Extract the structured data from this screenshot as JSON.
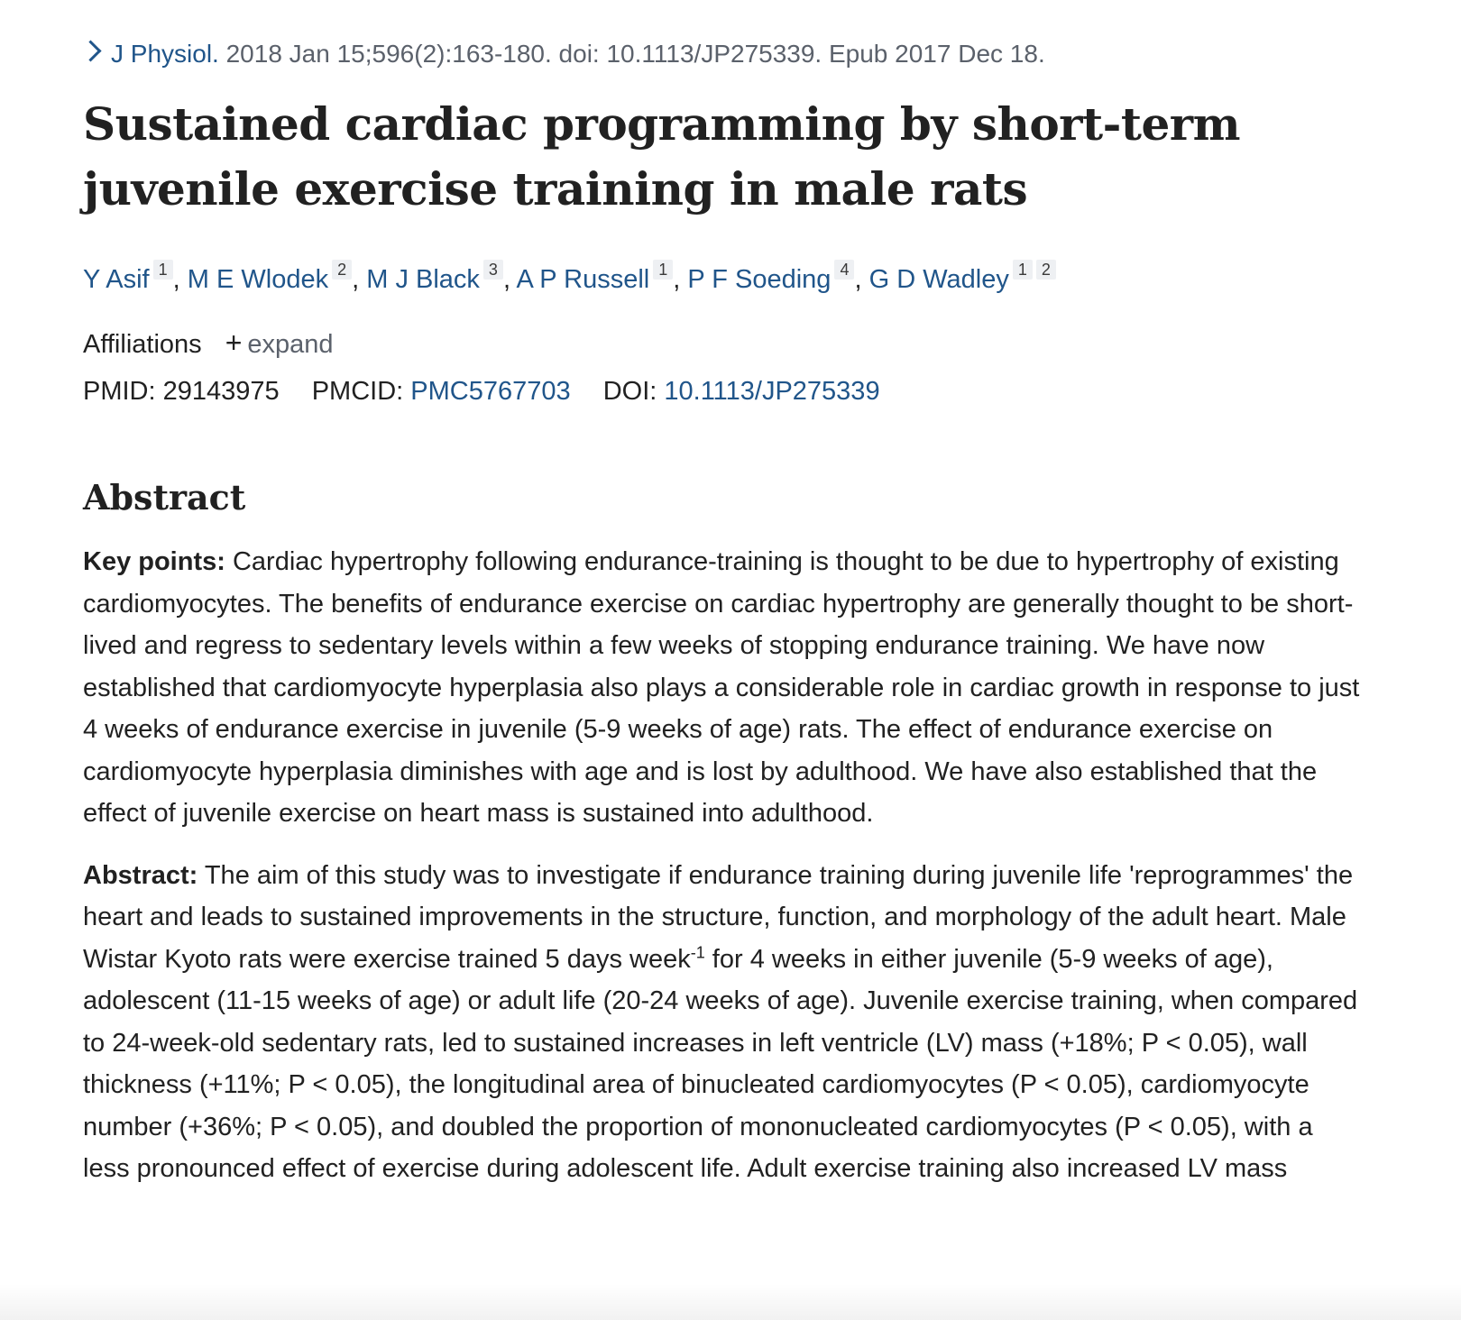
{
  "citation": {
    "journal": "J Physiol.",
    "details": " 2018 Jan 15;596(2):163-180. doi: 10.1113/JP275339. Epub 2017 Dec 18."
  },
  "title": "Sustained cardiac programming by short-term juvenile exercise training in male rats",
  "authors": [
    {
      "name": "Y Asif",
      "affs": [
        "1"
      ]
    },
    {
      "name": "M E Wlodek",
      "affs": [
        "2"
      ]
    },
    {
      "name": "M J Black",
      "affs": [
        "3"
      ]
    },
    {
      "name": "A P Russell",
      "affs": [
        "1"
      ]
    },
    {
      "name": "P F Soeding",
      "affs": [
        "4"
      ]
    },
    {
      "name": "G D Wadley",
      "affs": [
        "1",
        "2"
      ]
    }
  ],
  "affiliations": {
    "label": "Affiliations",
    "plus": "+",
    "expand_label": "expand"
  },
  "identifiers": {
    "pmid_label": "PMID:",
    "pmid": "29143975",
    "pmcid_label": "PMCID:",
    "pmcid": "PMC5767703",
    "doi_label": "DOI:",
    "doi": "10.1113/JP275339"
  },
  "abstract": {
    "heading": "Abstract",
    "key_points_label": "Key points:",
    "key_points_text": " Cardiac hypertrophy following endurance-training is thought to be due to hypertrophy of existing cardiomyocytes. The benefits of endurance exercise on cardiac hypertrophy are generally thought to be short-lived and regress to sedentary levels within a few weeks of stopping endurance training. We have now established that cardiomyocyte hyperplasia also plays a considerable role in cardiac growth in response to just 4 weeks of endurance exercise in juvenile (5-9 weeks of age) rats. The effect of endurance exercise on cardiomyocyte hyperplasia diminishes with age and is lost by adulthood. We have also established that the effect of juvenile exercise on heart mass is sustained into adulthood.",
    "abstract_label": "Abstract:",
    "abstract_text_1": " The aim of this study was to investigate if endurance training during juvenile life 'reprogrammes' the heart and leads to sustained improvements in the structure, function, and morphology of the adult heart. Male Wistar Kyoto rats were exercise trained 5 days week",
    "abstract_sup": "-1",
    "abstract_text_2": " for 4 weeks in either juvenile (5-9 weeks of age), adolescent (11-15 weeks of age) or adult life (20-24 weeks of age). Juvenile exercise training, when compared to 24-week-old sedentary rats, led to sustained increases in left ventricle (LV) mass (+18%; P < 0.05), wall thickness (+11%; P < 0.05), the longitudinal area of binucleated cardiomyocytes (P < 0.05), cardiomyocyte number (+36%; P < 0.05), and doubled the proportion of mononucleated cardiomyocytes (P < 0.05), with a less pronounced effect of exercise during adolescent life. Adult exercise training also increased LV mass"
  }
}
